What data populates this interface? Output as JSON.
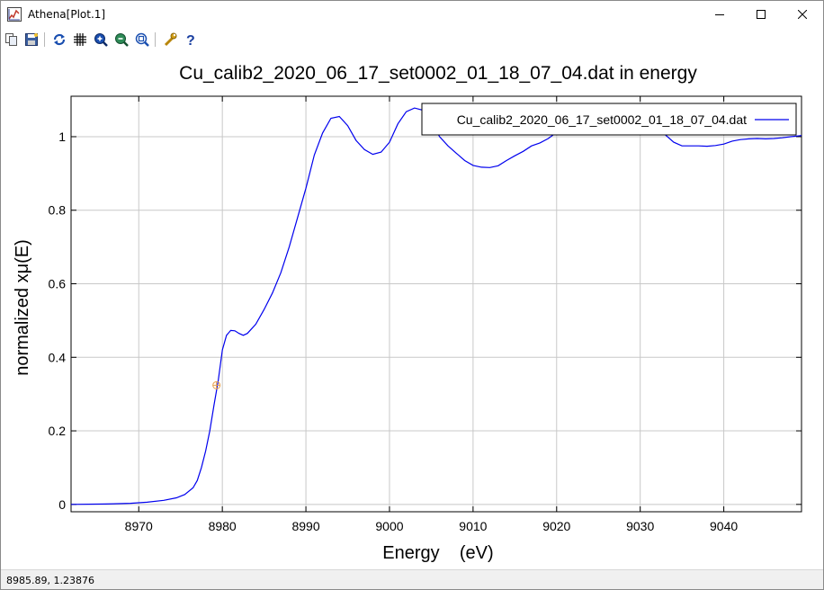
{
  "window": {
    "title": "Athena[Plot.1]",
    "minimize_glyph": "—",
    "maximize_glyph": "☐",
    "close_glyph": "✕"
  },
  "toolbar": {
    "items": [
      {
        "icon": "copy-icon"
      },
      {
        "icon": "save-icon"
      },
      {
        "icon": "refresh-icon"
      },
      {
        "icon": "grid-icon"
      },
      {
        "icon": "zoom-in-icon"
      },
      {
        "icon": "zoom-out-icon"
      },
      {
        "icon": "zoom-reset-icon"
      },
      {
        "icon": "settings-icon"
      },
      {
        "icon": "help-icon"
      }
    ]
  },
  "status": {
    "coords": "8985.89,  1.23876"
  },
  "chart_data": {
    "type": "line",
    "title": "Cu_calib2_2020_06_17_set0002_01_18_07_04.dat in energy",
    "xlabel": "Energy    (eV)",
    "ylabel": "normalized xμ(E)",
    "xlim": [
      8961.9,
      9049.3
    ],
    "ylim": [
      -0.02,
      1.11
    ],
    "xticks": [
      8970,
      8980,
      8990,
      9000,
      9010,
      9020,
      9030,
      9040
    ],
    "yticks": [
      0,
      0.2,
      0.4,
      0.6,
      0.8,
      1
    ],
    "grid": true,
    "legend_position": "top-right",
    "line_color": "#0000ee",
    "marker": {
      "x": 8979.3,
      "y": 0.324,
      "color": "#e8a04a"
    },
    "series": [
      {
        "name": "Cu_calib2_2020_06_17_set0002_01_18_07_04.dat",
        "x": [
          8961.9,
          8966,
          8969,
          8971,
          8973,
          8974.5,
          8975.5,
          8976.5,
          8977,
          8977.5,
          8978,
          8978.5,
          8979,
          8979.5,
          8980,
          8980.5,
          8981,
          8981.5,
          8982,
          8982.5,
          8983,
          8984,
          8985,
          8986,
          8987,
          8988,
          8989,
          8990,
          8991,
          8992,
          8993,
          8994,
          8995,
          8996,
          8997,
          8998,
          8999,
          9000,
          9001,
          9002,
          9003,
          9004,
          9005,
          9006,
          9007,
          9008,
          9009,
          9010,
          9011,
          9012,
          9013,
          9014,
          9015,
          9016,
          9017,
          9018,
          9019,
          9020,
          9021,
          9022,
          9023,
          9024,
          9025,
          9026,
          9027,
          9028,
          9029,
          9030,
          9031,
          9032,
          9033,
          9034,
          9035,
          9036,
          9037,
          9038,
          9039,
          9040,
          9041,
          9042,
          9043,
          9044,
          9045,
          9046,
          9047,
          9048,
          9049.3
        ],
        "y": [
          0.0,
          0.001,
          0.003,
          0.006,
          0.011,
          0.018,
          0.027,
          0.045,
          0.065,
          0.1,
          0.145,
          0.2,
          0.27,
          0.335,
          0.42,
          0.46,
          0.473,
          0.472,
          0.465,
          0.46,
          0.465,
          0.49,
          0.53,
          0.575,
          0.63,
          0.7,
          0.78,
          0.86,
          0.95,
          1.01,
          1.05,
          1.055,
          1.03,
          0.99,
          0.965,
          0.952,
          0.958,
          0.985,
          1.035,
          1.068,
          1.078,
          1.072,
          1.04,
          1.0,
          0.975,
          0.955,
          0.935,
          0.922,
          0.917,
          0.916,
          0.921,
          0.935,
          0.948,
          0.96,
          0.975,
          0.983,
          0.995,
          1.012,
          1.028,
          1.045,
          1.065,
          1.078,
          1.09,
          1.09,
          1.085,
          1.075,
          1.05,
          1.04,
          1.025,
          1.015,
          1.005,
          0.985,
          0.975,
          0.975,
          0.975,
          0.974,
          0.976,
          0.98,
          0.988,
          0.992,
          0.994,
          0.995,
          0.994,
          0.995,
          0.997,
          1.0,
          1.003
        ]
      }
    ]
  }
}
